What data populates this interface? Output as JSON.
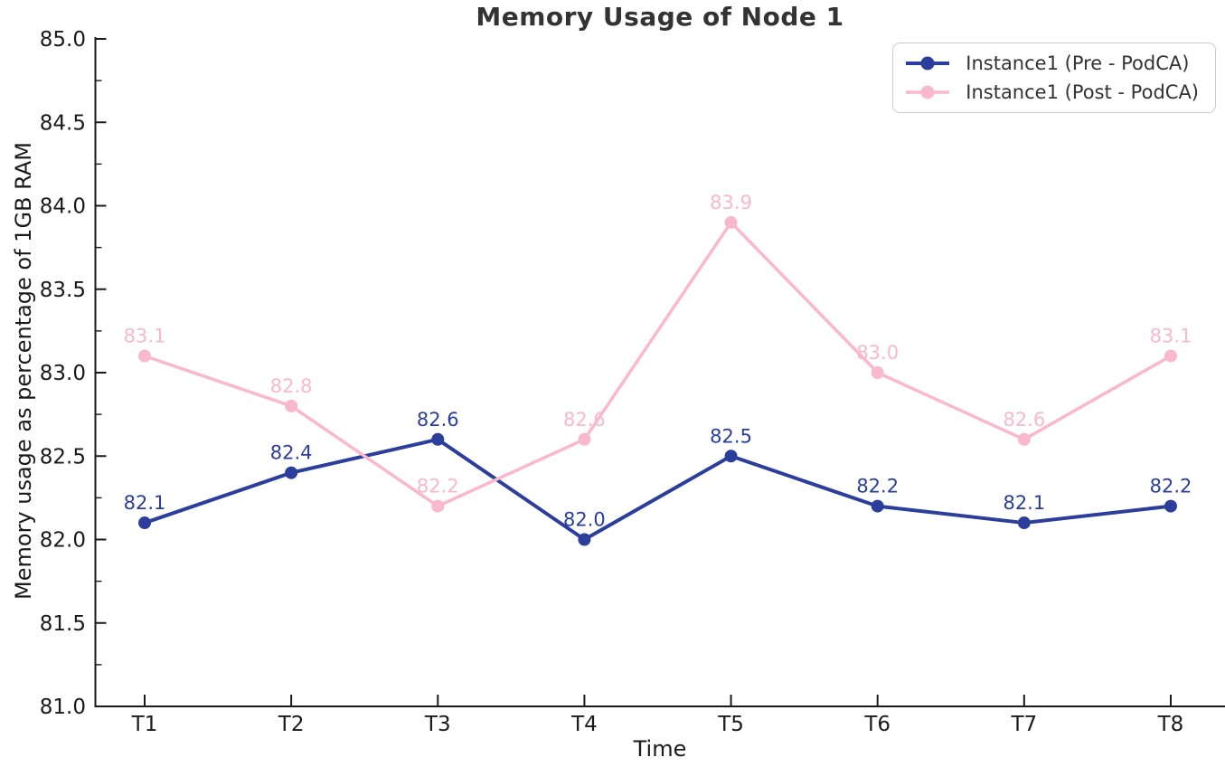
{
  "title": "Memory Usage of Node 1",
  "chart_data": {
    "type": "line",
    "title": "Memory Usage of Node 1",
    "xlabel": "Time",
    "ylabel": "Memory usage as percentage of 1GB RAM",
    "categories": [
      "T1",
      "T2",
      "T3",
      "T4",
      "T5",
      "T6",
      "T7",
      "T8"
    ],
    "series": [
      {
        "name": "Instance1 (Pre - PodCA)",
        "color": "#2b3e9c",
        "marker": "circle",
        "values": [
          82.1,
          82.4,
          82.6,
          82.0,
          82.5,
          82.2,
          82.1,
          82.2
        ]
      },
      {
        "name": "Instance1 (Post - PodCA)",
        "color": "#f9b8cb",
        "marker": "circle",
        "values": [
          83.1,
          82.8,
          82.2,
          82.6,
          83.9,
          83.0,
          82.6,
          83.1
        ]
      }
    ],
    "ylim": [
      81.0,
      85.0
    ],
    "ytick_step": 0.5,
    "y_minor_tick_step": 0.25,
    "ytick_labels": [
      "81.0",
      "81.5",
      "82.0",
      "82.5",
      "83.0",
      "83.5",
      "84.0",
      "84.5",
      "85.0"
    ],
    "grid": false,
    "legend_position": "upper right",
    "data_labels": true,
    "axis_color": "#1a1a1a"
  }
}
